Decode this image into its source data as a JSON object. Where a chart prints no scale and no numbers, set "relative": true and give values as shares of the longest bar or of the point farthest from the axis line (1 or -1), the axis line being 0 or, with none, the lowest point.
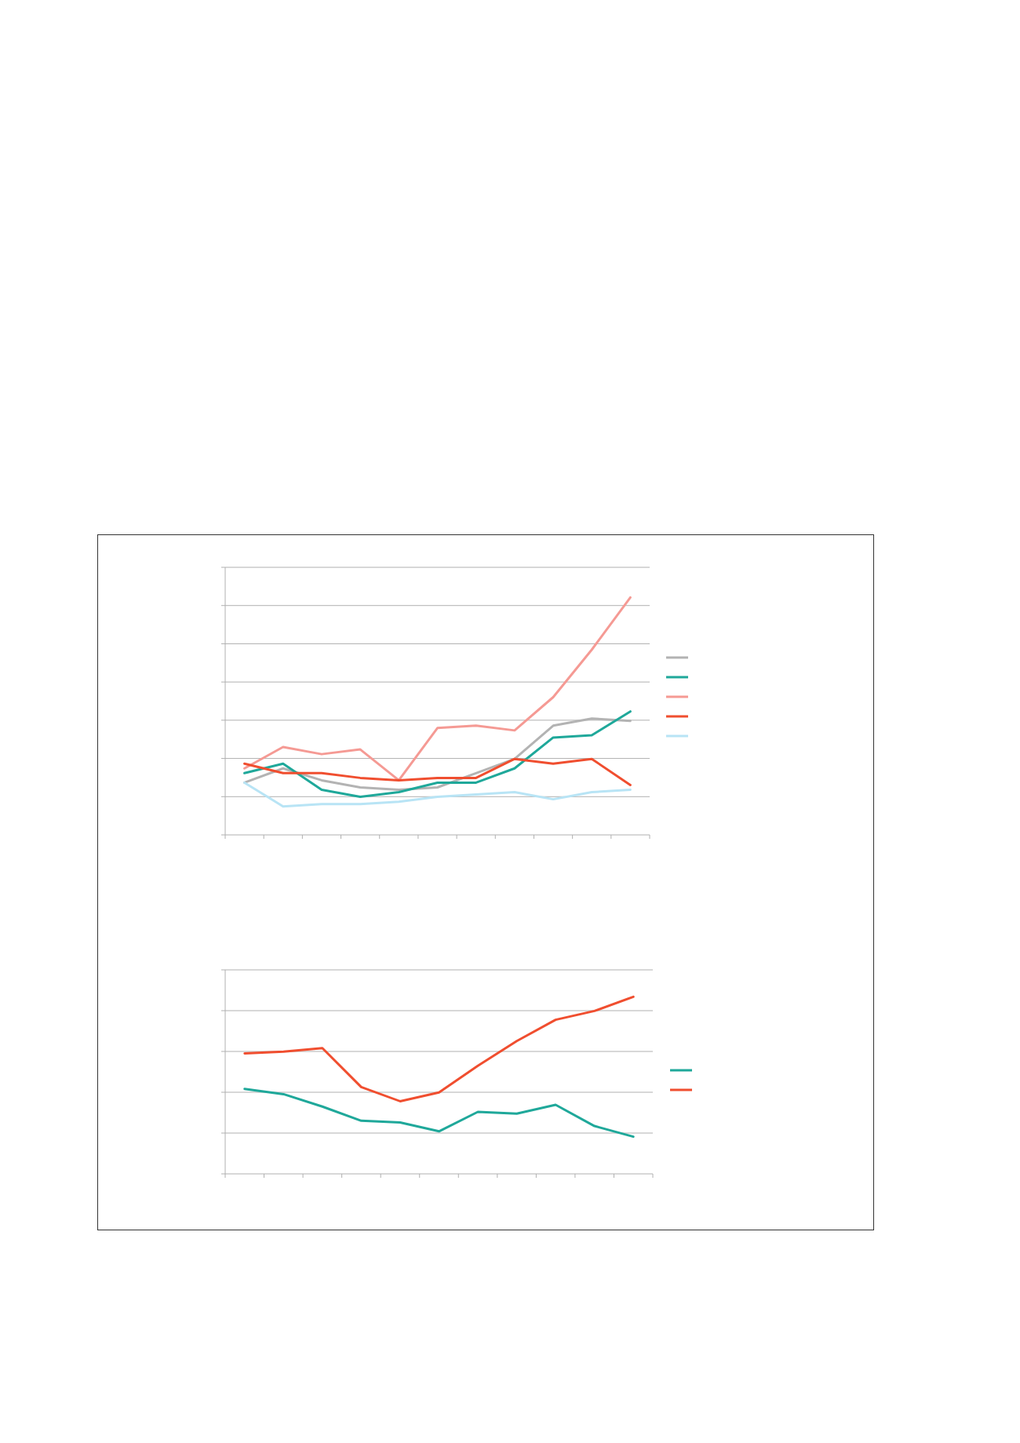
{
  "chart_data": [
    {
      "type": "line",
      "relative": true,
      "grid": true,
      "categories": [
        null,
        null,
        null,
        null,
        null,
        null,
        null,
        null,
        null,
        null,
        null
      ],
      "series": [
        {
          "color": "#b3b3b3",
          "values": [
            0.22,
            0.28,
            0.23,
            0.2,
            0.19,
            0.2,
            0.26,
            0.32,
            0.46,
            0.49,
            0.48
          ]
        },
        {
          "color": "#1fa89a",
          "values": [
            0.26,
            0.3,
            0.19,
            0.16,
            0.18,
            0.22,
            0.22,
            0.28,
            0.41,
            0.42,
            0.52
          ]
        },
        {
          "color": "#f59a94",
          "values": [
            0.28,
            0.37,
            0.34,
            0.36,
            0.23,
            0.45,
            0.46,
            0.44,
            0.58,
            0.78,
            1
          ]
        },
        {
          "color": "#f04e2f",
          "values": [
            0.3,
            0.26,
            0.26,
            0.24,
            0.23,
            0.24,
            0.24,
            0.32,
            0.3,
            0.32,
            0.21
          ]
        },
        {
          "color": "#b8e4f5",
          "values": [
            0.22,
            0.12,
            0.13,
            0.13,
            0.14,
            0.16,
            0.17,
            0.18,
            0.15,
            0.18,
            0.19
          ]
        }
      ]
    },
    {
      "type": "line",
      "relative": true,
      "grid": true,
      "categories": [
        null,
        null,
        null,
        null,
        null,
        null,
        null,
        null,
        null,
        null,
        null
      ],
      "series": [
        {
          "color": "#1fa89a",
          "values": [
            0.48,
            0.45,
            0.38,
            0.3,
            0.29,
            0.24,
            0.35,
            0.34,
            0.39,
            0.27,
            0.21
          ]
        },
        {
          "color": "#f04e2f",
          "values": [
            0.68,
            0.69,
            0.71,
            0.49,
            0.41,
            0.46,
            0.61,
            0.75,
            0.87,
            0.92,
            1
          ]
        }
      ]
    }
  ]
}
